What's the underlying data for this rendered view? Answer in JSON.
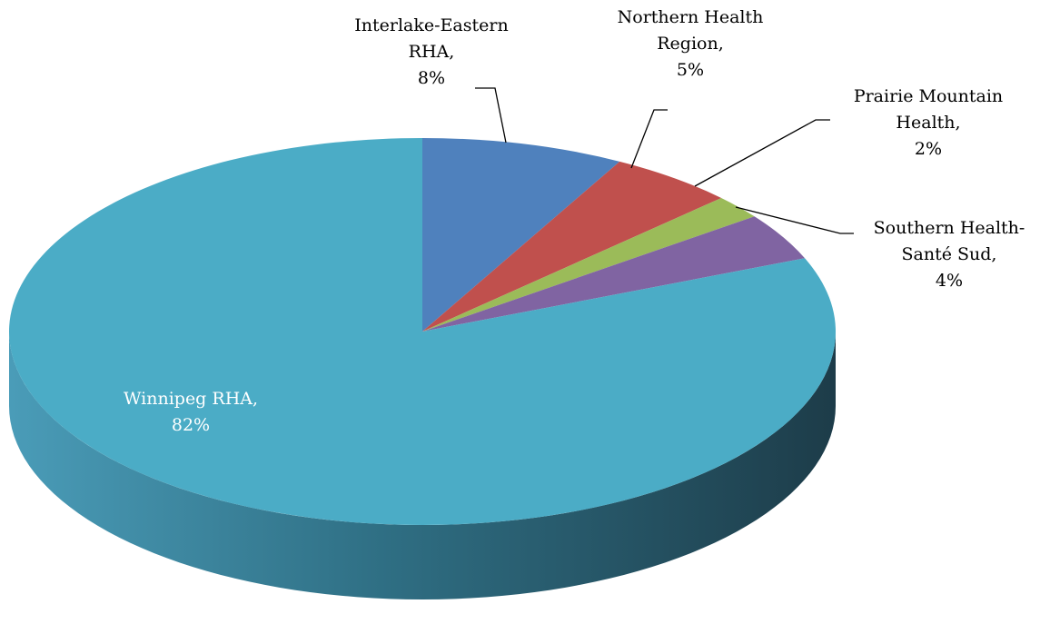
{
  "chart_data": {
    "type": "pie",
    "categories": [
      "Interlake-Eastern RHA,",
      "Northern Health Region,",
      "Prairie Mountain Health,",
      "Southern Health-Santé Sud,",
      "Winnipeg RHA,"
    ],
    "values": [
      8,
      5,
      2,
      4,
      82
    ],
    "value_labels": [
      "8%",
      "5%",
      "2%",
      "4%",
      "82%"
    ],
    "colors": [
      "#4f81bd",
      "#c0504d",
      "#9bbb59",
      "#8064a2",
      "#4bacc6"
    ]
  }
}
